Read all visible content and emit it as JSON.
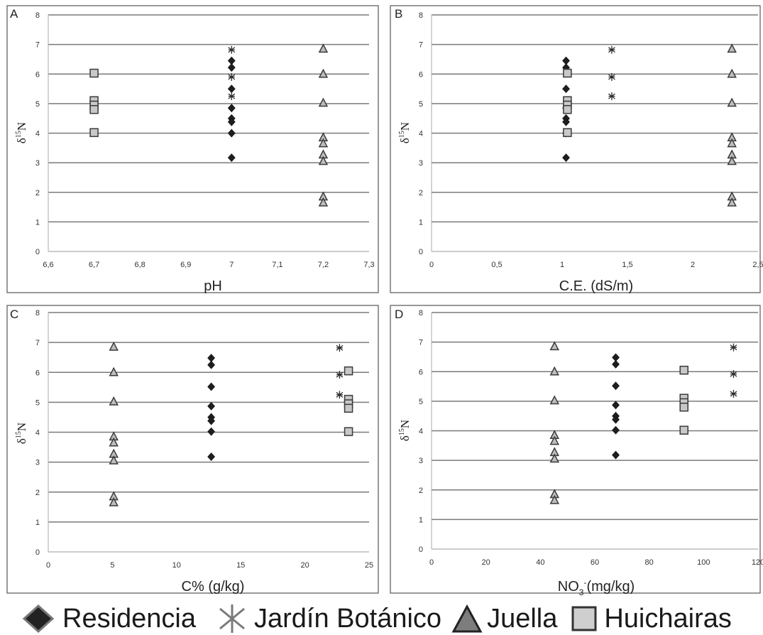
{
  "colors": {
    "residencia": "#222222",
    "jardin": "#555555",
    "juella": "#8a8a8a",
    "huichairas": "#cfcfcf",
    "grid": "#7a7a7a",
    "frame": "#555555"
  },
  "legend": {
    "residencia": "Residencia",
    "jardin": "Jardín Botánico",
    "juella": "Juella",
    "huichairas": "Huichairas"
  },
  "chart_data": [
    {
      "type": "scatter",
      "panel": "A",
      "ylabel": "δ15N",
      "xlabel": "pH",
      "xlim": [
        6.6,
        7.3
      ],
      "ylim": [
        0,
        8
      ],
      "x_ticks": [
        "6,6",
        "6,7",
        "6,8",
        "6,9",
        "7",
        "7,1",
        "7,2",
        "7,3"
      ],
      "y_ticks": [
        "0",
        "1",
        "2",
        "3",
        "4",
        "5",
        "6",
        "7",
        "8"
      ],
      "grid": true,
      "series": [
        {
          "name": "Residencia",
          "marker": "diamond",
          "points": [
            [
              7.0,
              6.45
            ],
            [
              7.0,
              6.22
            ],
            [
              7.0,
              5.5
            ],
            [
              7.0,
              4.85
            ],
            [
              7.0,
              4.5
            ],
            [
              7.0,
              4.38
            ],
            [
              7.0,
              4.0
            ],
            [
              7.0,
              3.17
            ]
          ]
        },
        {
          "name": "Jardín Botánico",
          "marker": "star",
          "points": [
            [
              7.0,
              6.82
            ],
            [
              7.0,
              5.9
            ],
            [
              7.0,
              5.25
            ]
          ]
        },
        {
          "name": "Juella",
          "marker": "triangle",
          "points": [
            [
              7.2,
              6.85
            ],
            [
              7.2,
              6.0
            ],
            [
              7.2,
              5.02
            ],
            [
              7.2,
              3.85
            ],
            [
              7.2,
              3.65
            ],
            [
              7.2,
              3.27
            ],
            [
              7.2,
              3.05
            ],
            [
              7.2,
              1.85
            ],
            [
              7.2,
              1.65
            ]
          ]
        },
        {
          "name": "Huichairas",
          "marker": "square",
          "points": [
            [
              6.7,
              6.03
            ],
            [
              6.7,
              5.1
            ],
            [
              6.7,
              4.95
            ],
            [
              6.7,
              4.8
            ],
            [
              6.7,
              4.02
            ]
          ]
        }
      ]
    },
    {
      "type": "scatter",
      "panel": "B",
      "ylabel": "δ15N",
      "xlabel": "C.E. (dS/m)",
      "xlim": [
        0,
        2.5
      ],
      "ylim": [
        0,
        8
      ],
      "x_ticks": [
        "0",
        "0,5",
        "1",
        "1,5",
        "2",
        "2,5"
      ],
      "y_ticks": [
        "0",
        "1",
        "2",
        "3",
        "4",
        "5",
        "6",
        "7",
        "8"
      ],
      "grid": true,
      "series": [
        {
          "name": "Residencia",
          "marker": "diamond",
          "points": [
            [
              1.03,
              6.45
            ],
            [
              1.03,
              6.22
            ],
            [
              1.03,
              5.5
            ],
            [
              1.03,
              4.85
            ],
            [
              1.03,
              4.5
            ],
            [
              1.03,
              4.38
            ],
            [
              1.03,
              4.0
            ],
            [
              1.03,
              3.17
            ]
          ]
        },
        {
          "name": "Jardín Botánico",
          "marker": "star",
          "points": [
            [
              1.38,
              6.82
            ],
            [
              1.38,
              5.9
            ],
            [
              1.38,
              5.25
            ]
          ]
        },
        {
          "name": "Juella",
          "marker": "triangle",
          "points": [
            [
              2.3,
              6.85
            ],
            [
              2.3,
              6.0
            ],
            [
              2.3,
              5.02
            ],
            [
              2.3,
              3.85
            ],
            [
              2.3,
              3.65
            ],
            [
              2.3,
              3.27
            ],
            [
              2.3,
              3.05
            ],
            [
              2.3,
              1.85
            ],
            [
              2.3,
              1.65
            ]
          ]
        },
        {
          "name": "Huichairas",
          "marker": "square",
          "points": [
            [
              1.04,
              6.03
            ],
            [
              1.04,
              5.1
            ],
            [
              1.04,
              4.95
            ],
            [
              1.04,
              4.8
            ],
            [
              1.04,
              4.02
            ]
          ]
        }
      ]
    },
    {
      "type": "scatter",
      "panel": "C",
      "ylabel": "δ15N",
      "xlabel": "C% (g/kg)",
      "xlim": [
        0,
        25
      ],
      "ylim": [
        0,
        8
      ],
      "x_ticks": [
        "0",
        "5",
        "10",
        "15",
        "20",
        "25"
      ],
      "y_ticks": [
        "0",
        "1",
        "2",
        "3",
        "4",
        "5",
        "6",
        "7",
        "8"
      ],
      "grid": true,
      "series": [
        {
          "name": "Residencia",
          "marker": "diamond",
          "points": [
            [
              12.7,
              6.48
            ],
            [
              12.7,
              6.25
            ],
            [
              12.7,
              5.52
            ],
            [
              12.7,
              4.87
            ],
            [
              12.7,
              4.5
            ],
            [
              12.7,
              4.38
            ],
            [
              12.7,
              4.02
            ],
            [
              12.7,
              3.18
            ]
          ]
        },
        {
          "name": "Jardín Botánico",
          "marker": "star",
          "points": [
            [
              22.7,
              6.82
            ],
            [
              22.7,
              5.92
            ],
            [
              22.7,
              5.25
            ]
          ]
        },
        {
          "name": "Juella",
          "marker": "triangle",
          "points": [
            [
              5.1,
              6.85
            ],
            [
              5.1,
              6.0
            ],
            [
              5.1,
              5.02
            ],
            [
              5.1,
              3.85
            ],
            [
              5.1,
              3.65
            ],
            [
              5.1,
              3.27
            ],
            [
              5.1,
              3.05
            ],
            [
              5.1,
              1.85
            ],
            [
              5.1,
              1.65
            ]
          ]
        },
        {
          "name": "Huichairas",
          "marker": "square",
          "points": [
            [
              23.4,
              6.05
            ],
            [
              23.4,
              5.1
            ],
            [
              23.4,
              4.95
            ],
            [
              23.4,
              4.8
            ],
            [
              23.4,
              4.02
            ]
          ]
        }
      ]
    },
    {
      "type": "scatter",
      "panel": "D",
      "ylabel": "δ15N",
      "xlabel": "NO3-(mg/kg)",
      "xlim": [
        0,
        120
      ],
      "ylim": [
        0,
        8
      ],
      "x_ticks": [
        "0",
        "20",
        "40",
        "60",
        "80",
        "100",
        "120"
      ],
      "y_ticks": [
        "0",
        "1",
        "2",
        "3",
        "4",
        "5",
        "6",
        "7",
        "8"
      ],
      "grid": true,
      "series": [
        {
          "name": "Residencia",
          "marker": "diamond",
          "points": [
            [
              67.7,
              6.48
            ],
            [
              67.7,
              6.25
            ],
            [
              67.7,
              5.52
            ],
            [
              67.7,
              4.87
            ],
            [
              67.7,
              4.5
            ],
            [
              67.7,
              4.38
            ],
            [
              67.7,
              4.02
            ],
            [
              67.7,
              3.18
            ]
          ]
        },
        {
          "name": "Jardín Botánico",
          "marker": "star",
          "points": [
            [
              111,
              6.82
            ],
            [
              111,
              5.92
            ],
            [
              111,
              5.25
            ]
          ]
        },
        {
          "name": "Juella",
          "marker": "triangle",
          "points": [
            [
              45.2,
              6.85
            ],
            [
              45.2,
              6.0
            ],
            [
              45.2,
              5.02
            ],
            [
              45.2,
              3.85
            ],
            [
              45.2,
              3.65
            ],
            [
              45.2,
              3.27
            ],
            [
              45.2,
              3.05
            ],
            [
              45.2,
              1.85
            ],
            [
              45.2,
              1.65
            ]
          ]
        },
        {
          "name": "Huichairas",
          "marker": "square",
          "points": [
            [
              92.8,
              6.05
            ],
            [
              92.8,
              5.1
            ],
            [
              92.8,
              4.95
            ],
            [
              92.8,
              4.8
            ],
            [
              92.8,
              4.02
            ]
          ]
        }
      ]
    }
  ]
}
